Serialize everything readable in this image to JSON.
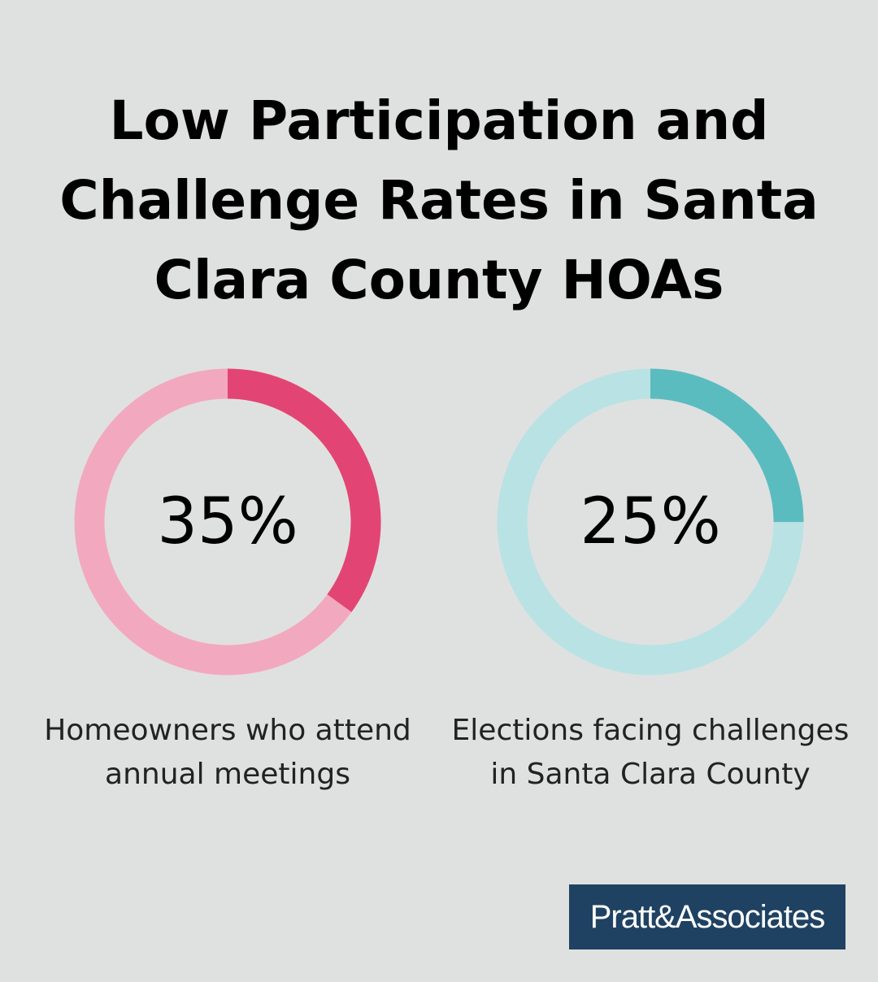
{
  "chart_data": [
    {
      "type": "pie",
      "subtype": "donut",
      "value": 35,
      "unit": "%",
      "label_text": "35%",
      "description": "Homeowners who attend annual meetings",
      "colors": {
        "fill": "#e24574",
        "track": "#f2a9bf"
      }
    },
    {
      "type": "pie",
      "subtype": "donut",
      "value": 25,
      "unit": "%",
      "label_text": "25%",
      "description": "Elections facing challenges in Santa Clara County",
      "colors": {
        "fill": "#5bbcc0",
        "track": "#b9e2e4"
      }
    }
  ],
  "title": "Low Participation and Challenge Rates in Santa Clara County HOAs",
  "logo": "Pratt&Associates",
  "colors": {
    "background": "#dfe1e0",
    "logo_bg": "#1f4263"
  }
}
